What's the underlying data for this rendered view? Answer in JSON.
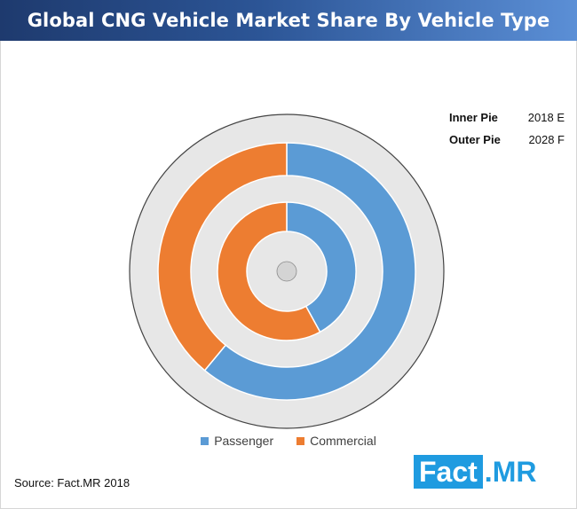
{
  "title": "Global CNG Vehicle Market Share By Vehicle Type",
  "pie_legend": [
    {
      "key": "Inner Pie",
      "value": "2018 E"
    },
    {
      "key": "Outer Pie",
      "value": "2028 F"
    }
  ],
  "source": "Source: Fact.MR  2018",
  "logo": {
    "part1": "Fact",
    "part2": ".MR"
  },
  "colors": {
    "passenger": "#5b9bd5",
    "commercial": "#ed7d31",
    "track": "#e7e7e7",
    "rim": "#444444"
  },
  "chart_data": {
    "type": "pie",
    "title": "Global CNG Vehicle Market Share By Vehicle Type",
    "categories": [
      "Passenger",
      "Commercial"
    ],
    "series": [
      {
        "name": "2018 E",
        "ring": "inner",
        "values": [
          42,
          58
        ]
      },
      {
        "name": "2028 F",
        "ring": "outer",
        "values": [
          61,
          39
        ]
      }
    ],
    "legend": "bottom"
  }
}
